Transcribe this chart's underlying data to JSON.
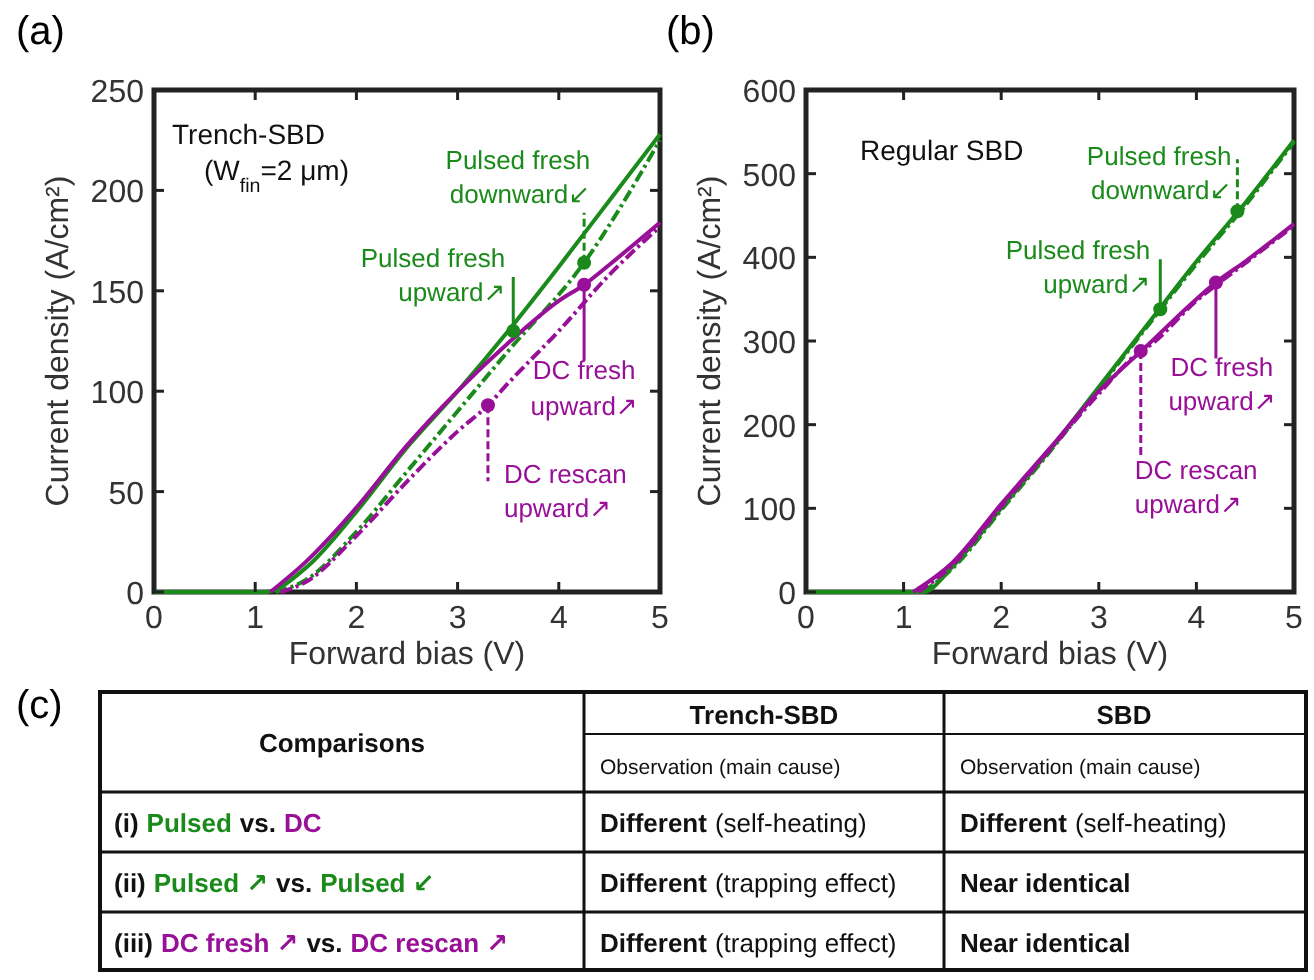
{
  "chart_data": [
    {
      "type": "line",
      "title": "(a)",
      "xlabel": "Forward bias (V)",
      "ylabel": "Current density (A/cm²)",
      "xlim": [
        0,
        5
      ],
      "ylim": [
        0,
        250
      ],
      "xticks": [
        0,
        1,
        2,
        3,
        4,
        5
      ],
      "yticks": [
        0,
        50,
        100,
        150,
        200,
        250
      ],
      "series": [
        {
          "color": "#1a8a1a",
          "line_style": "solid",
          "x": [
            0,
            1,
            1.1,
            1.5,
            2,
            2.5,
            3,
            3.5,
            4,
            4.5,
            5
          ],
          "values": [
            0,
            0,
            0,
            12,
            40,
            72,
            100,
            130,
            162,
            195,
            228
          ]
        },
        {
          "color": "#1a8a1a",
          "line_style": "dashed",
          "x": [
            1.2,
            1.5,
            2,
            2.5,
            3,
            3.5,
            4.25,
            5
          ],
          "values": [
            0,
            6,
            30,
            60,
            90,
            120,
            164,
            225
          ]
        },
        {
          "color": "#980f98",
          "line_style": "solid",
          "x": [
            1.15,
            1.5,
            2,
            2.5,
            3,
            3.5,
            4,
            4.25,
            4.5,
            5
          ],
          "values": [
            0,
            15,
            42,
            73,
            100,
            124,
            145,
            153,
            163,
            184
          ]
        },
        {
          "color": "#980f98",
          "line_style": "dashed",
          "x": [
            1.25,
            1.5,
            2,
            2.5,
            3,
            3.3,
            3.5,
            4,
            4.5,
            5
          ],
          "values": [
            0,
            5,
            28,
            55,
            80,
            93,
            104,
            130,
            158,
            182
          ]
        }
      ],
      "annotations": [
        "Trench-SBD",
        "(W$_{fin}$=2 μm)",
        {
          "text": "Pulsed fresh upward↗",
          "x": 3.55,
          "y": 130
        },
        {
          "text": "Pulsed fresh downward↙",
          "x": 4.25,
          "y": 164
        },
        {
          "text": "DC fresh upward↗",
          "x": 4.25,
          "y": 153
        },
        {
          "text": "DC rescan upward↗",
          "x": 3.3,
          "y": 93
        }
      ]
    },
    {
      "type": "line",
      "title": "(b)",
      "xlabel": "Forward bias (V)",
      "ylabel": "Current density (A/cm²)",
      "xlim": [
        0,
        5
      ],
      "ylim": [
        0,
        600
      ],
      "xticks": [
        0,
        1,
        2,
        3,
        4,
        5
      ],
      "yticks": [
        0,
        100,
        200,
        300,
        400,
        500,
        600
      ],
      "series": [
        {
          "color": "#1a8a1a",
          "line_style": "solid",
          "x": [
            0,
            1,
            1.2,
            1.5,
            2,
            2.5,
            3,
            3.5,
            4,
            4.5,
            5
          ],
          "values": [
            0,
            0,
            0,
            30,
            100,
            170,
            245,
            320,
            395,
            465,
            540
          ]
        },
        {
          "color": "#1a8a1a",
          "line_style": "dashed",
          "x": [
            1.2,
            1.5,
            2,
            2.5,
            3,
            3.5,
            4,
            4.5,
            5
          ],
          "values": [
            0,
            28,
            98,
            168,
            243,
            318,
            392,
            462,
            538
          ]
        },
        {
          "color": "#980f98",
          "line_style": "solid",
          "x": [
            1.1,
            1.5,
            2,
            2.5,
            3,
            3.5,
            4,
            4.2,
            4.5,
            5
          ],
          "values": [
            0,
            35,
            105,
            172,
            240,
            295,
            350,
            370,
            395,
            440
          ]
        },
        {
          "color": "#980f98",
          "line_style": "dashed",
          "x": [
            1.15,
            1.5,
            2,
            2.5,
            3,
            3.43,
            3.5,
            4,
            4.5,
            5
          ],
          "values": [
            0,
            32,
            102,
            170,
            237,
            288,
            293,
            348,
            393,
            438
          ]
        }
      ],
      "annotations": [
        "Regular SBD",
        {
          "text": "Pulsed fresh upward↗",
          "x": 3.63,
          "y": 338
        },
        {
          "text": "Pulsed fresh downward↙",
          "x": 4.42,
          "y": 455
        },
        {
          "text": "DC fresh upward↗",
          "x": 4.2,
          "y": 370
        },
        {
          "text": "DC rescan upward↗",
          "x": 3.43,
          "y": 288
        }
      ]
    },
    {
      "type": "other",
      "title": "(c)",
      "annotations": [
        "Comparisons",
        "Trench-SBD",
        "SBD",
        "Observation (main cause)",
        "Observation (main cause)",
        "(i)",
        "Pulsed",
        "vs.",
        "DC",
        "Different",
        "(self-heating)",
        "Different",
        "(self-heating)",
        "(ii)",
        "Pulsed ↗",
        "vs.",
        "Pulsed ↙",
        "Different",
        "(trapping effect)",
        "Near identical",
        "(iii)",
        "DC fresh ↗",
        "vs.",
        "DC rescan ↗",
        "Different",
        "(trapping effect)",
        "Near identical"
      ]
    }
  ]
}
